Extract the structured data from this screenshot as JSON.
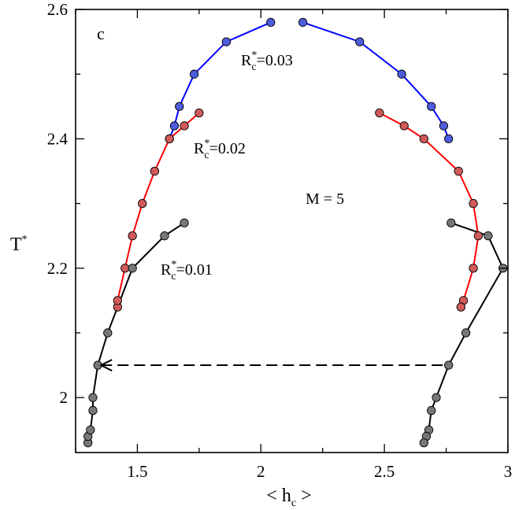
{
  "chart_data": {
    "type": "line",
    "panel_label": "c",
    "title": "",
    "xlabel": {
      "lhs": "< h",
      "sub": "c",
      "rhs": " >"
    },
    "ylabel": {
      "base": "T",
      "sup": "*"
    },
    "xlim": [
      1.25,
      3.0
    ],
    "ylim": [
      1.915,
      2.6
    ],
    "xticks": [
      1.5,
      2.0,
      2.5,
      3.0
    ],
    "xtick_labels": [
      "1.5",
      "2",
      "2.5",
      "3"
    ],
    "yticks": [
      2.0,
      2.2,
      2.4,
      2.6
    ],
    "ytick_labels": [
      "2",
      "2.2",
      "2.4",
      "2.6"
    ],
    "grid": false,
    "legend": "none",
    "annotation_M": "M = 5",
    "series": [
      {
        "label": {
          "base": "R",
          "sup": "*",
          "sub": "c",
          "value": "=0.03"
        },
        "color": "#0000ff",
        "fill": "#5a6bff",
        "left": [
          [
            1.63,
            2.4
          ],
          [
            1.65,
            2.42
          ],
          [
            1.67,
            2.45
          ],
          [
            1.73,
            2.5
          ],
          [
            1.86,
            2.55
          ],
          [
            2.04,
            2.58
          ]
        ],
        "right": [
          [
            2.17,
            2.58
          ],
          [
            2.4,
            2.55
          ],
          [
            2.57,
            2.5
          ],
          [
            2.69,
            2.45
          ],
          [
            2.74,
            2.42
          ],
          [
            2.76,
            2.4
          ]
        ]
      },
      {
        "label": {
          "base": "R",
          "sup": "*",
          "sub": "c",
          "value": "=0.02"
        },
        "color": "#ff0000",
        "fill": "#f06868",
        "left": [
          [
            1.42,
            2.14
          ],
          [
            1.42,
            2.15
          ],
          [
            1.45,
            2.2
          ],
          [
            1.48,
            2.25
          ],
          [
            1.52,
            2.3
          ],
          [
            1.57,
            2.35
          ],
          [
            1.63,
            2.4
          ],
          [
            1.69,
            2.42
          ],
          [
            1.75,
            2.44
          ]
        ],
        "right": [
          [
            2.48,
            2.44
          ],
          [
            2.58,
            2.42
          ],
          [
            2.66,
            2.4
          ],
          [
            2.8,
            2.35
          ],
          [
            2.86,
            2.3
          ],
          [
            2.88,
            2.25
          ],
          [
            2.86,
            2.2
          ],
          [
            2.82,
            2.15
          ],
          [
            2.81,
            2.14
          ]
        ]
      },
      {
        "label": {
          "base": "R",
          "sup": "*",
          "sub": "c",
          "value": "=0.01"
        },
        "color": "#000000",
        "fill": "#8a8a8a",
        "left": [
          [
            1.3,
            1.93
          ],
          [
            1.3,
            1.94
          ],
          [
            1.31,
            1.95
          ],
          [
            1.32,
            1.98
          ],
          [
            1.32,
            2.0
          ],
          [
            1.34,
            2.05
          ],
          [
            1.38,
            2.1
          ],
          [
            1.48,
            2.2
          ],
          [
            1.61,
            2.25
          ],
          [
            1.69,
            2.27
          ]
        ],
        "right": [
          [
            2.77,
            2.27
          ],
          [
            2.92,
            2.25
          ],
          [
            2.98,
            2.2
          ],
          [
            2.83,
            2.1
          ],
          [
            2.76,
            2.05
          ],
          [
            2.71,
            2.0
          ],
          [
            2.69,
            1.98
          ],
          [
            2.68,
            1.95
          ],
          [
            2.67,
            1.94
          ],
          [
            2.66,
            1.93
          ]
        ]
      }
    ],
    "tie_line": {
      "from": [
        1.34,
        2.05
      ],
      "to": [
        2.76,
        2.05
      ],
      "style": "dashed",
      "arrow": "start"
    }
  }
}
